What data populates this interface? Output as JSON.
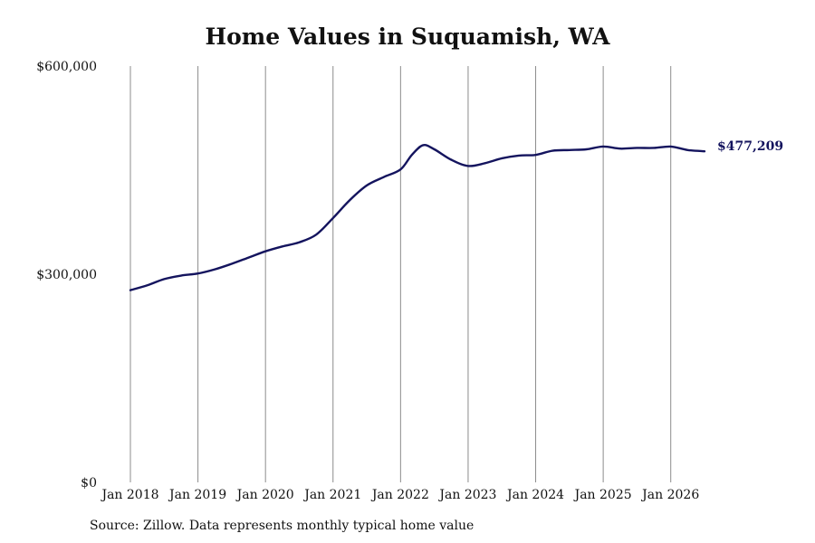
{
  "chart_data": {
    "type": "line",
    "title": "Home Values in Suquamish, WA",
    "xlabel": "",
    "ylabel": "",
    "x_ticks": [
      "Jan 2018",
      "Jan 2019",
      "Jan 2020",
      "Jan 2021",
      "Jan 2022",
      "Jan 2023",
      "Jan 2024",
      "Jan 2025",
      "Jan 2026"
    ],
    "y_ticks": [
      {
        "value": 0,
        "label": "$0"
      },
      {
        "value": 300000,
        "label": "$300,000"
      },
      {
        "value": 600000,
        "label": "$600,000"
      }
    ],
    "ylim": [
      0,
      600000
    ],
    "xlim": [
      "2018-01",
      "2026-07"
    ],
    "grid": "vertical",
    "line_color": "#14145e",
    "end_label": "$477,209",
    "series": [
      {
        "values": [
          {
            "x": "2018-01",
            "y": 277000
          },
          {
            "x": "2018-04",
            "y": 284000
          },
          {
            "x": "2018-07",
            "y": 293000
          },
          {
            "x": "2018-10",
            "y": 298000
          },
          {
            "x": "2019-01",
            "y": 301000
          },
          {
            "x": "2019-04",
            "y": 307000
          },
          {
            "x": "2019-07",
            "y": 315000
          },
          {
            "x": "2019-10",
            "y": 324000
          },
          {
            "x": "2020-01",
            "y": 333000
          },
          {
            "x": "2020-04",
            "y": 340000
          },
          {
            "x": "2020-07",
            "y": 346000
          },
          {
            "x": "2020-10",
            "y": 357000
          },
          {
            "x": "2021-01",
            "y": 381000
          },
          {
            "x": "2021-04",
            "y": 407000
          },
          {
            "x": "2021-07",
            "y": 428000
          },
          {
            "x": "2021-10",
            "y": 440000
          },
          {
            "x": "2022-01",
            "y": 451000
          },
          {
            "x": "2022-03",
            "y": 472000
          },
          {
            "x": "2022-05",
            "y": 486000
          },
          {
            "x": "2022-07",
            "y": 480000
          },
          {
            "x": "2022-10",
            "y": 465000
          },
          {
            "x": "2023-01",
            "y": 456000
          },
          {
            "x": "2023-04",
            "y": 460000
          },
          {
            "x": "2023-07",
            "y": 467000
          },
          {
            "x": "2023-10",
            "y": 471000
          },
          {
            "x": "2024-01",
            "y": 472000
          },
          {
            "x": "2024-04",
            "y": 478000
          },
          {
            "x": "2024-07",
            "y": 479000
          },
          {
            "x": "2024-10",
            "y": 480000
          },
          {
            "x": "2025-01",
            "y": 484000
          },
          {
            "x": "2025-04",
            "y": 481000
          },
          {
            "x": "2025-07",
            "y": 482000
          },
          {
            "x": "2025-10",
            "y": 482000
          },
          {
            "x": "2026-01",
            "y": 484000
          },
          {
            "x": "2026-04",
            "y": 479000
          },
          {
            "x": "2026-07",
            "y": 477209
          }
        ]
      }
    ]
  },
  "source_note": "Source: Zillow. Data represents monthly typical home value"
}
